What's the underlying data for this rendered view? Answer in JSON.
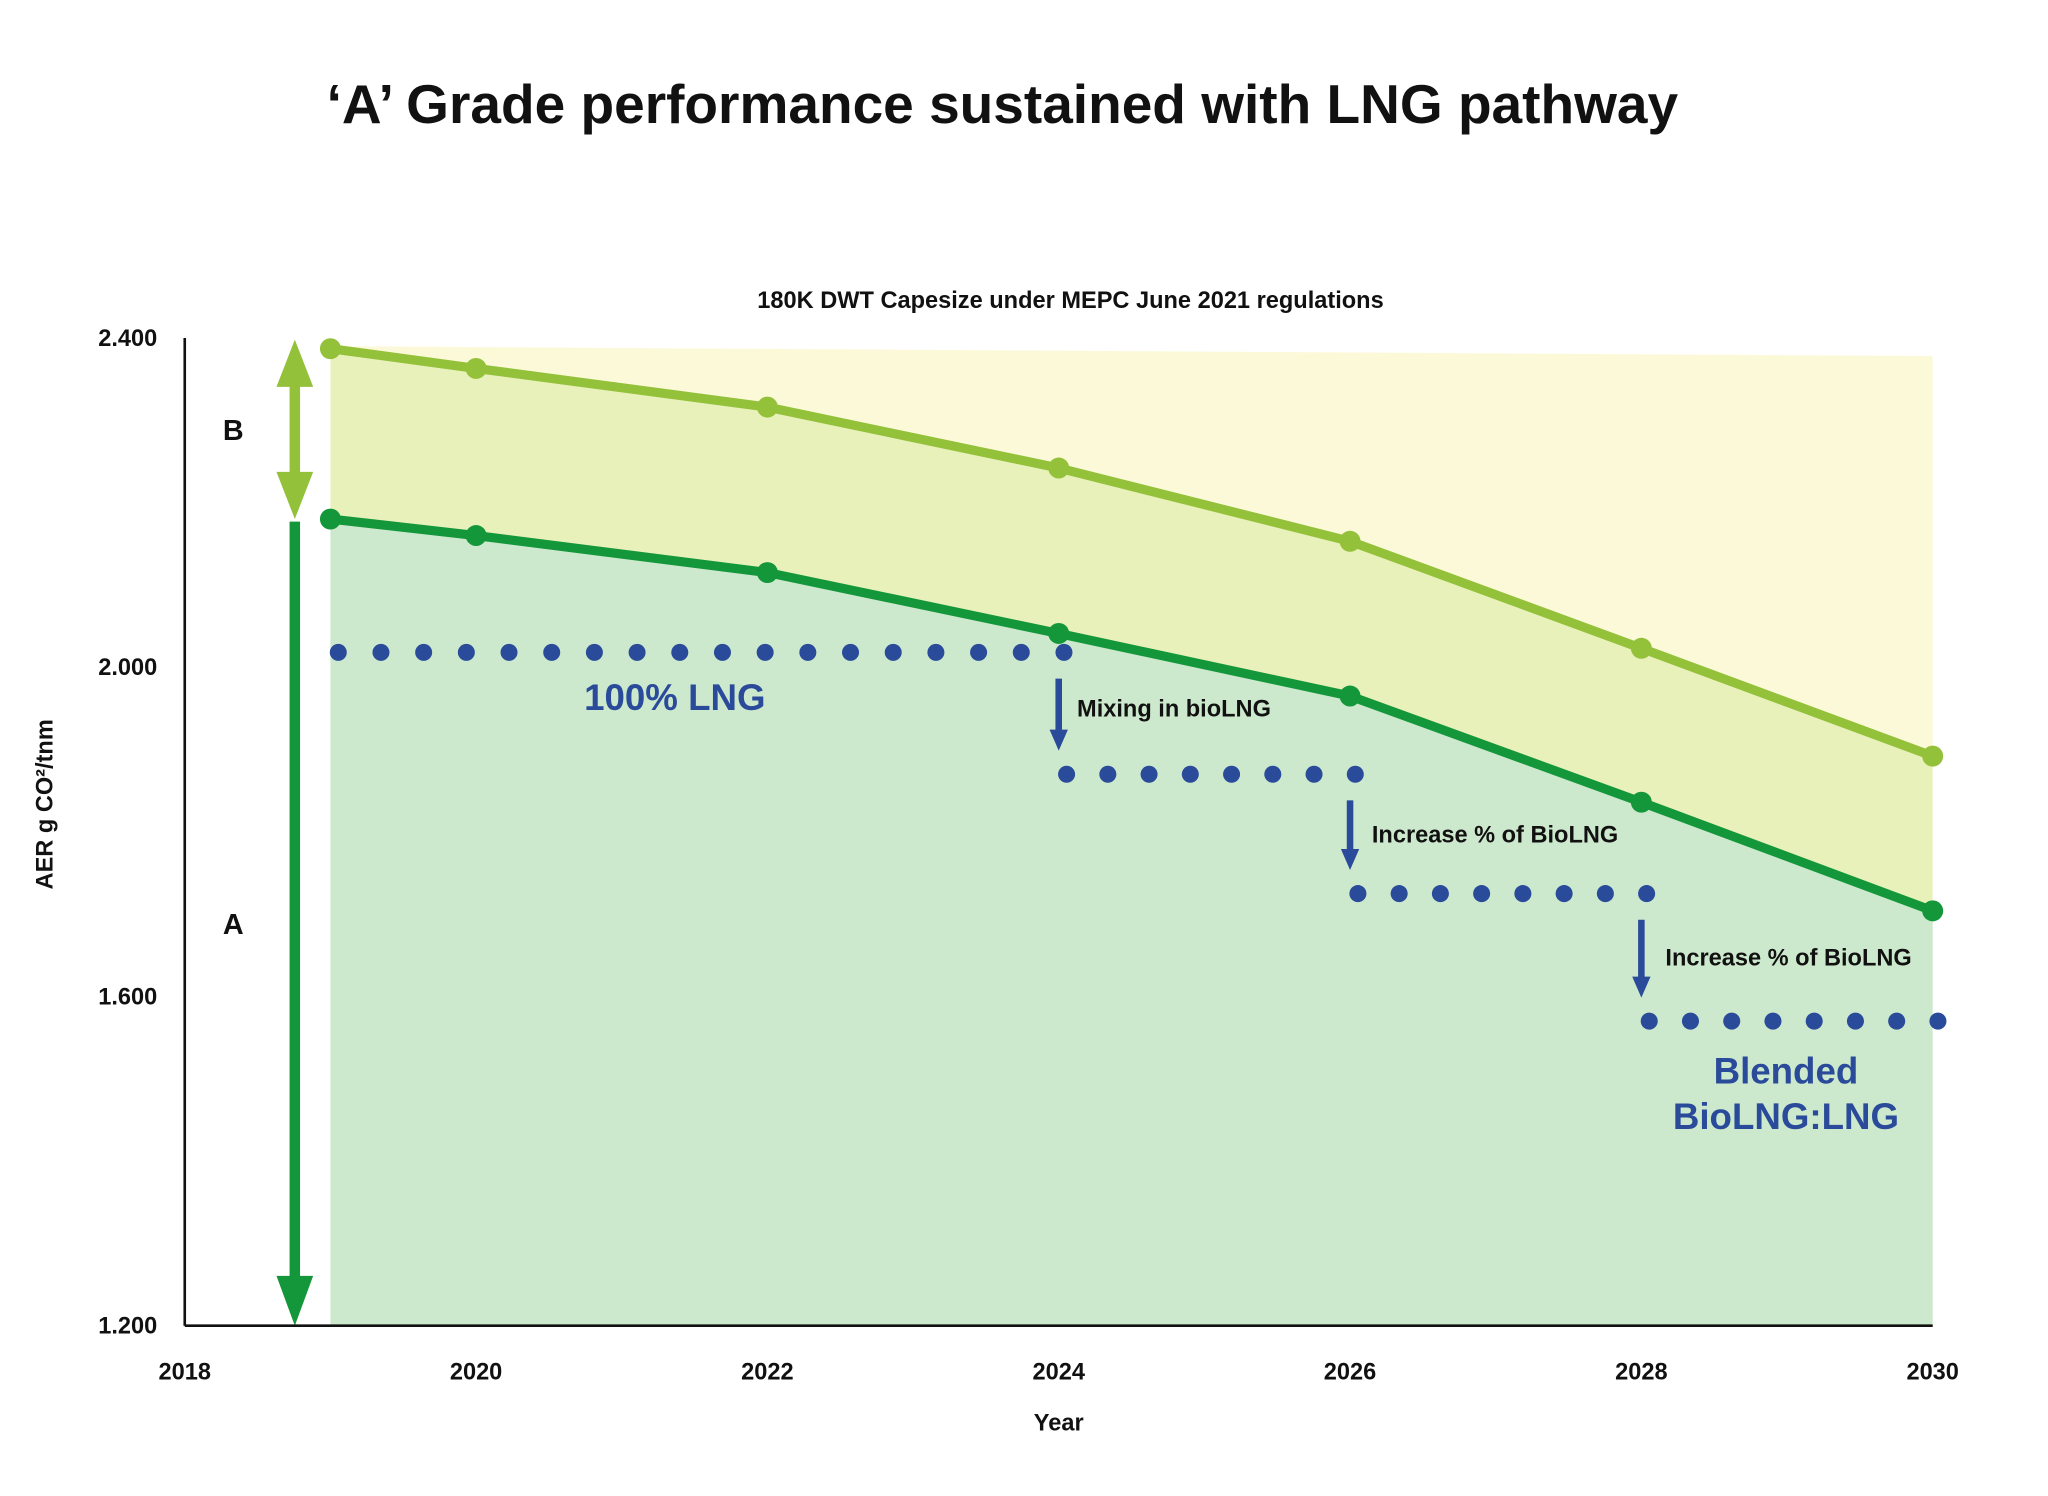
{
  "chart_data": {
    "type": "area",
    "title": "‘A’ Grade performance sustained with LNG pathway",
    "subtitle": "180K DWT Capesize under MEPC June 2021 regulations",
    "xlabel": "Year",
    "ylabel": "AER g CO²/tnm",
    "xlim": [
      2018,
      2030
    ],
    "ylim": [
      1.2,
      2.4
    ],
    "x_ticks": [
      "2018",
      "2020",
      "2022",
      "2024",
      "2026",
      "2028",
      "2030"
    ],
    "y_ticks": [
      "1.200",
      "1.600",
      "2.000",
      "2.400"
    ],
    "x_tick_values": [
      2018,
      2020,
      2022,
      2024,
      2026,
      2028,
      2030
    ],
    "y_tick_values": [
      1.2,
      1.6,
      2.0,
      2.4
    ],
    "grid": false,
    "legend": "none",
    "series": [
      {
        "role": "upper-boundary",
        "color": "#93c13a",
        "x": [
          2019,
          2020,
          2022,
          2024,
          2026,
          2028,
          2030
        ],
        "y": [
          2.387,
          2.363,
          2.316,
          2.242,
          2.153,
          2.023,
          1.892
        ]
      },
      {
        "role": "lower-boundary",
        "color": "#14963a",
        "x": [
          2019,
          2020,
          2022,
          2024,
          2026,
          2028,
          2030
        ],
        "y": [
          2.18,
          2.16,
          2.115,
          2.041,
          1.965,
          1.836,
          1.704
        ]
      }
    ],
    "top_band": {
      "x": [
        2019,
        2030
      ],
      "y": [
        2.39,
        2.378
      ],
      "color": "#fbf9d8"
    },
    "band_colors": {
      "B": "#e9f1bb",
      "A": "#cde9cd"
    },
    "dotted_levels": [
      {
        "x": [
          2019,
          2024
        ],
        "y": 2.018
      },
      {
        "x": [
          2024,
          2026
        ],
        "y": 1.87
      },
      {
        "x": [
          2026,
          2028
        ],
        "y": 1.725
      },
      {
        "x": [
          2028,
          2030
        ],
        "y": 1.57
      }
    ],
    "dot_color": "#2a4a9a",
    "grade_arrows": [
      {
        "label": "B",
        "color": "#93c13a",
        "y": [
          2.39,
          2.18
        ]
      },
      {
        "label": "A",
        "color": "#14963a",
        "y": [
          2.18,
          1.2
        ]
      }
    ],
    "annotations": {
      "lng": "100% LNG",
      "mixing": "Mixing in bioLNG",
      "increase1": "Increase % of BioLNG",
      "increase2": "Increase % of BioLNG",
      "blended1": "Blended",
      "blended2": "BioLNG:LNG"
    }
  }
}
